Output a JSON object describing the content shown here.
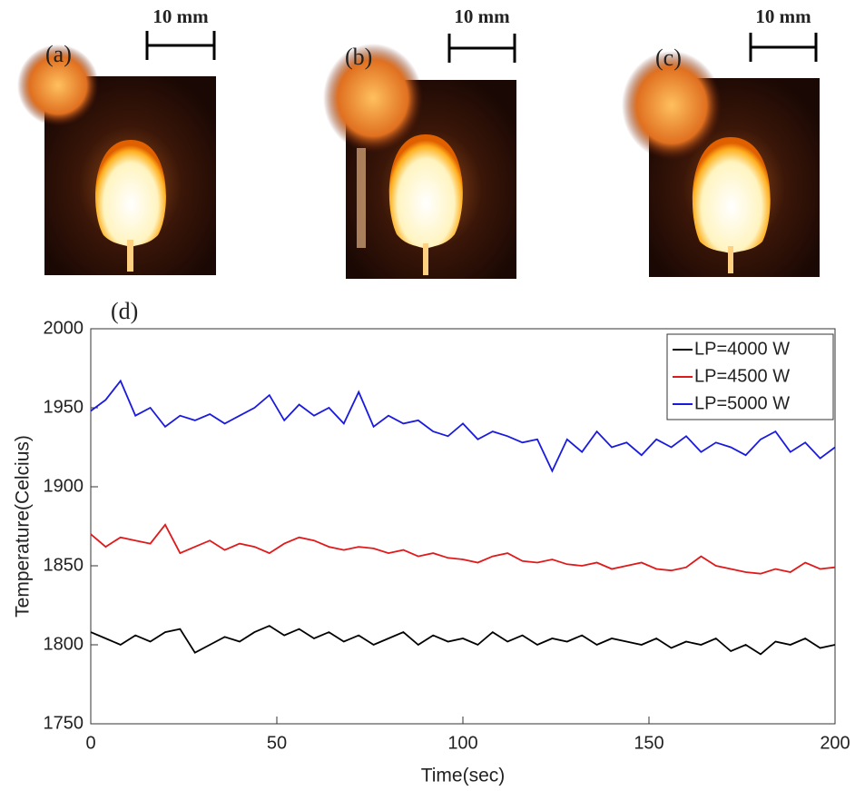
{
  "panels": [
    {
      "label": "(a)",
      "scale": "10 mm"
    },
    {
      "label": "(b)",
      "scale": "10 mm"
    },
    {
      "label": "(c)",
      "scale": "10 mm"
    }
  ],
  "chart_panel_label": "(d)",
  "chart_data": {
    "type": "line",
    "xlabel": "Time(sec)",
    "ylabel": "Temperature(Celcius)",
    "x": [
      0,
      4,
      8,
      12,
      16,
      20,
      24,
      28,
      32,
      36,
      40,
      44,
      48,
      52,
      56,
      60,
      64,
      68,
      72,
      76,
      80,
      84,
      88,
      92,
      96,
      100,
      104,
      108,
      112,
      116,
      120,
      124,
      128,
      132,
      136,
      140,
      144,
      148,
      152,
      156,
      160,
      164,
      168,
      172,
      176,
      180,
      184,
      188,
      192,
      196,
      200
    ],
    "series": [
      {
        "name": "LP=4000 W",
        "color": "#000000",
        "values": [
          1808,
          1804,
          1800,
          1806,
          1802,
          1808,
          1810,
          1795,
          1800,
          1805,
          1802,
          1808,
          1812,
          1806,
          1810,
          1804,
          1808,
          1802,
          1806,
          1800,
          1804,
          1808,
          1800,
          1806,
          1802,
          1804,
          1800,
          1808,
          1802,
          1806,
          1800,
          1804,
          1802,
          1806,
          1800,
          1804,
          1802,
          1800,
          1804,
          1798,
          1802,
          1800,
          1804,
          1796,
          1800,
          1794,
          1802,
          1800,
          1804,
          1798,
          1800
        ]
      },
      {
        "name": "LP=4500 W",
        "color": "#e0191b",
        "values": [
          1870,
          1862,
          1868,
          1866,
          1864,
          1876,
          1858,
          1862,
          1866,
          1860,
          1864,
          1862,
          1858,
          1864,
          1868,
          1866,
          1862,
          1860,
          1862,
          1861,
          1858,
          1860,
          1856,
          1858,
          1855,
          1854,
          1852,
          1856,
          1858,
          1853,
          1852,
          1854,
          1851,
          1850,
          1852,
          1848,
          1850,
          1852,
          1848,
          1847,
          1849,
          1856,
          1850,
          1848,
          1846,
          1845,
          1848,
          1846,
          1852,
          1848,
          1849
        ]
      },
      {
        "name": "LP=5000 W",
        "color": "#1a1adf",
        "values": [
          1948,
          1955,
          1967,
          1945,
          1950,
          1938,
          1945,
          1942,
          1946,
          1940,
          1945,
          1950,
          1958,
          1942,
          1952,
          1945,
          1950,
          1940,
          1960,
          1938,
          1945,
          1940,
          1942,
          1935,
          1932,
          1940,
          1930,
          1935,
          1932,
          1928,
          1930,
          1910,
          1930,
          1922,
          1935,
          1925,
          1928,
          1920,
          1930,
          1925,
          1932,
          1922,
          1928,
          1925,
          1920,
          1930,
          1935,
          1922,
          1928,
          1918,
          1925
        ]
      }
    ],
    "xlim": [
      0,
      200
    ],
    "ylim": [
      1750,
      2000
    ],
    "xticks": [
      0,
      50,
      100,
      150,
      200
    ],
    "yticks": [
      1750,
      1800,
      1850,
      1900,
      1950,
      2000
    ],
    "grid": false,
    "legend": "upper right"
  }
}
